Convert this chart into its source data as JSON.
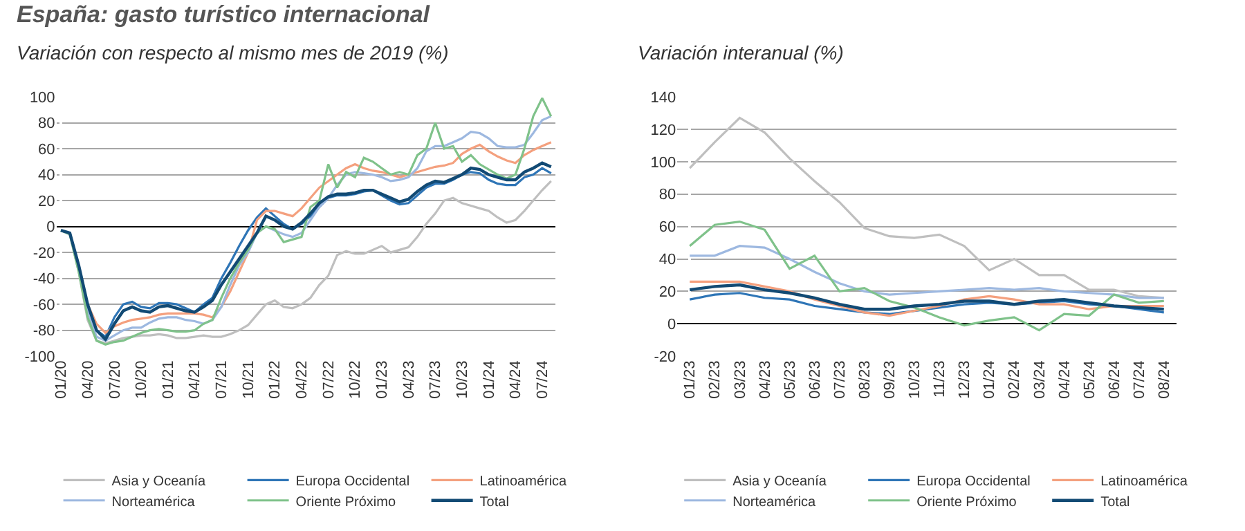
{
  "chart_data": [
    {
      "type": "line",
      "title": "España: gasto turístico internacional",
      "subtitle": "Variación con respecto al mismo mes de 2019 (%)",
      "categories": [
        "01/20",
        null,
        null,
        "04/20",
        null,
        null,
        "07/20",
        null,
        null,
        "10/20",
        null,
        null,
        "01/21",
        null,
        null,
        "04/21",
        null,
        null,
        "07/21",
        null,
        null,
        "10/21",
        null,
        null,
        "01/22",
        null,
        null,
        "04/22",
        null,
        null,
        "07/22",
        null,
        null,
        "10/22",
        null,
        null,
        "01/23",
        null,
        null,
        "04/23",
        null,
        null,
        "07/23",
        null,
        null,
        "10/23",
        null,
        null,
        "01/24",
        null,
        null,
        "04/24",
        null,
        null,
        "07/24",
        null
      ],
      "ylim": [
        -100,
        100
      ],
      "yticks": [
        -100,
        -80,
        -60,
        -40,
        -20,
        0,
        20,
        40,
        60,
        80,
        100
      ],
      "grid": "y",
      "legend": "bottom",
      "marker": "none",
      "line_style": "solid",
      "series": [
        {
          "name": "Asia y Oceanía",
          "color": "#bfbfbf",
          "values": [
            -3,
            -6,
            -35,
            -72,
            -88,
            -90,
            -88,
            -86,
            -85,
            -84,
            -84,
            -83,
            -84,
            -86,
            -86,
            -85,
            -84,
            -85,
            -85,
            -83,
            -80,
            -76,
            -68,
            -60,
            -57,
            -62,
            -63,
            -60,
            -55,
            -45,
            -38,
            -22,
            -19,
            -21,
            -21,
            -18,
            -15,
            -20,
            -18,
            -16,
            -8,
            2,
            10,
            20,
            22,
            18,
            16,
            14,
            12,
            7,
            3,
            5,
            12,
            20,
            28,
            35
          ]
        },
        {
          "name": "Europa Occidental",
          "color": "#2e75b6",
          "values": [
            -3,
            -5,
            -30,
            -62,
            -80,
            -85,
            -70,
            -60,
            -58,
            -62,
            -63,
            -59,
            -59,
            -60,
            -63,
            -66,
            -60,
            -55,
            -40,
            -28,
            -15,
            -3,
            7,
            14,
            8,
            2,
            -2,
            2,
            8,
            15,
            22,
            24,
            24,
            25,
            27,
            28,
            24,
            20,
            17,
            18,
            24,
            30,
            33,
            33,
            36,
            40,
            42,
            41,
            36,
            33,
            32,
            32,
            38,
            40,
            45,
            41
          ]
        },
        {
          "name": "Latinoamérica",
          "color": "#f4a07e",
          "values": [
            null,
            null,
            -30,
            -60,
            -75,
            -82,
            -77,
            -74,
            -72,
            -71,
            -70,
            -68,
            -67,
            -67,
            -67,
            -67,
            -68,
            -70,
            -62,
            -50,
            -35,
            -20,
            5,
            12,
            12,
            10,
            8,
            14,
            22,
            30,
            35,
            40,
            45,
            48,
            45,
            43,
            42,
            40,
            38,
            40,
            42,
            44,
            46,
            47,
            49,
            56,
            60,
            63,
            58,
            54,
            51,
            49,
            55,
            59,
            62,
            65
          ]
        },
        {
          "name": "Norteamérica",
          "color": "#9db8e0",
          "values": [
            -3,
            -6,
            -32,
            -65,
            -85,
            -88,
            -84,
            -80,
            -78,
            -78,
            -74,
            -71,
            -70,
            -70,
            -72,
            -73,
            -75,
            -72,
            -62,
            -45,
            -30,
            -20,
            -5,
            0,
            -3,
            -6,
            -8,
            -5,
            5,
            15,
            22,
            32,
            40,
            42,
            41,
            40,
            38,
            35,
            36,
            38,
            45,
            58,
            62,
            62,
            65,
            68,
            73,
            72,
            68,
            62,
            61,
            61,
            63,
            72,
            82,
            85
          ]
        },
        {
          "name": "Oriente Próximo",
          "color": "#7fc28a",
          "values": [
            -3,
            -6,
            -35,
            -70,
            -88,
            -91,
            -89,
            -88,
            -85,
            -82,
            -80,
            -79,
            -80,
            -81,
            -81,
            -80,
            -75,
            -72,
            -55,
            -40,
            -28,
            -18,
            -5,
            0,
            -2,
            -12,
            -10,
            -8,
            15,
            20,
            48,
            30,
            42,
            38,
            53,
            50,
            45,
            40,
            42,
            40,
            55,
            60,
            80,
            60,
            62,
            50,
            55,
            48,
            44,
            40,
            37,
            40,
            60,
            85,
            99,
            85
          ]
        },
        {
          "name": "Total",
          "color": "#124a74",
          "values": [
            -3,
            -5,
            -30,
            -60,
            -80,
            -87,
            -75,
            -65,
            -62,
            -65,
            -66,
            -62,
            -61,
            -63,
            -65,
            -66,
            -62,
            -57,
            -45,
            -35,
            -25,
            -15,
            -5,
            8,
            5,
            0,
            -2,
            3,
            10,
            18,
            23,
            25,
            25,
            26,
            28,
            28,
            25,
            22,
            19,
            21,
            27,
            32,
            35,
            34,
            37,
            40,
            45,
            44,
            40,
            38,
            36,
            36,
            42,
            45,
            49,
            46
          ]
        }
      ]
    },
    {
      "type": "line",
      "subtitle": "Variación interanual (%)",
      "categories": [
        "01/23",
        "02/23",
        "03/23",
        "04/23",
        "05/23",
        "06/23",
        "07/23",
        "08/23",
        "09/23",
        "10/23",
        "11/23",
        "12/23",
        "01/24",
        "02/24",
        "03/24",
        "04/24",
        "05/24",
        "06/24",
        "07/24",
        "08/24"
      ],
      "ylim": [
        -20,
        140
      ],
      "yticks": [
        -20,
        0,
        20,
        40,
        60,
        80,
        100,
        120,
        140
      ],
      "grid": "y",
      "legend": "bottom",
      "marker": "none",
      "line_style": "solid",
      "series": [
        {
          "name": "Asia y Oceanía",
          "color": "#bfbfbf",
          "values": [
            96,
            112,
            127,
            118,
            102,
            88,
            75,
            59,
            54,
            53,
            55,
            48,
            33,
            40,
            30,
            30,
            21,
            21,
            17,
            16
          ]
        },
        {
          "name": "Europa Occidental",
          "color": "#2e75b6",
          "values": [
            15,
            18,
            19,
            16,
            15,
            11,
            9,
            7,
            6,
            8,
            10,
            12,
            13,
            12,
            13,
            14,
            12,
            11,
            9,
            7
          ]
        },
        {
          "name": "Latinoamérica",
          "color": "#f4a07e",
          "values": [
            26,
            26,
            26,
            23,
            20,
            15,
            11,
            7,
            5,
            8,
            11,
            15,
            17,
            15,
            12,
            12,
            9,
            11,
            11,
            11
          ]
        },
        {
          "name": "Norteamérica",
          "color": "#9db8e0",
          "values": [
            42,
            42,
            48,
            47,
            40,
            32,
            25,
            20,
            18,
            19,
            20,
            21,
            22,
            21,
            22,
            20,
            19,
            18,
            16,
            16
          ]
        },
        {
          "name": "Oriente Próximo",
          "color": "#7fc28a",
          "values": [
            48,
            61,
            63,
            58,
            34,
            42,
            20,
            22,
            14,
            10,
            4,
            -1,
            2,
            4,
            -4,
            6,
            5,
            18,
            13,
            14
          ]
        },
        {
          "name": "Total",
          "color": "#124a74",
          "values": [
            21,
            23,
            24,
            21,
            19,
            16,
            12,
            9,
            9,
            11,
            12,
            14,
            14,
            12,
            14,
            15,
            13,
            11,
            10,
            9
          ]
        }
      ]
    }
  ]
}
